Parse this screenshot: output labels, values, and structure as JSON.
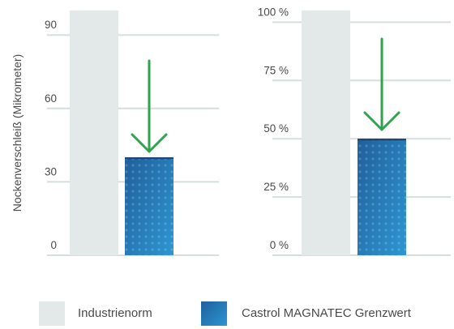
{
  "colors": {
    "industry": "#e3e8e8",
    "castrol_dark": "#1f5f9b",
    "castrol_light": "#2d96d2",
    "arrow": "#2ea44f",
    "grid": "#d6dede",
    "text": "#4a4a4a"
  },
  "chart_data": [
    {
      "type": "bar",
      "ylabel": "Nockenverschleiß (Mikrometer)",
      "ylim": [
        0,
        100
      ],
      "yticks": [
        0,
        30,
        60,
        90
      ],
      "ytick_labels": [
        "0",
        "30",
        "60",
        "90"
      ],
      "grid": true,
      "series": [
        {
          "name": "Industrienorm",
          "values": [
            100
          ]
        },
        {
          "name": "Castrol MAGNATEC Grenzwert",
          "values": [
            40
          ]
        }
      ],
      "annotations": [
        "down-arrow"
      ]
    },
    {
      "type": "bar",
      "ylabel": "",
      "ylim": [
        0,
        105
      ],
      "yticks": [
        0,
        25,
        50,
        75,
        100
      ],
      "ytick_labels": [
        "0 %",
        "25 %",
        "50 %",
        "75 %",
        "100 %"
      ],
      "grid": true,
      "series": [
        {
          "name": "Industrienorm",
          "values": [
            105
          ]
        },
        {
          "name": "Castrol MAGNATEC Grenzwert",
          "values": [
            50
          ]
        }
      ],
      "annotations": [
        "down-arrow"
      ]
    }
  ],
  "legend": {
    "placement": "bottom",
    "items": [
      {
        "label": "Industrienorm",
        "key": "industry"
      },
      {
        "label": "Castrol MAGNATEC Grenzwert",
        "key": "castrol"
      }
    ]
  }
}
